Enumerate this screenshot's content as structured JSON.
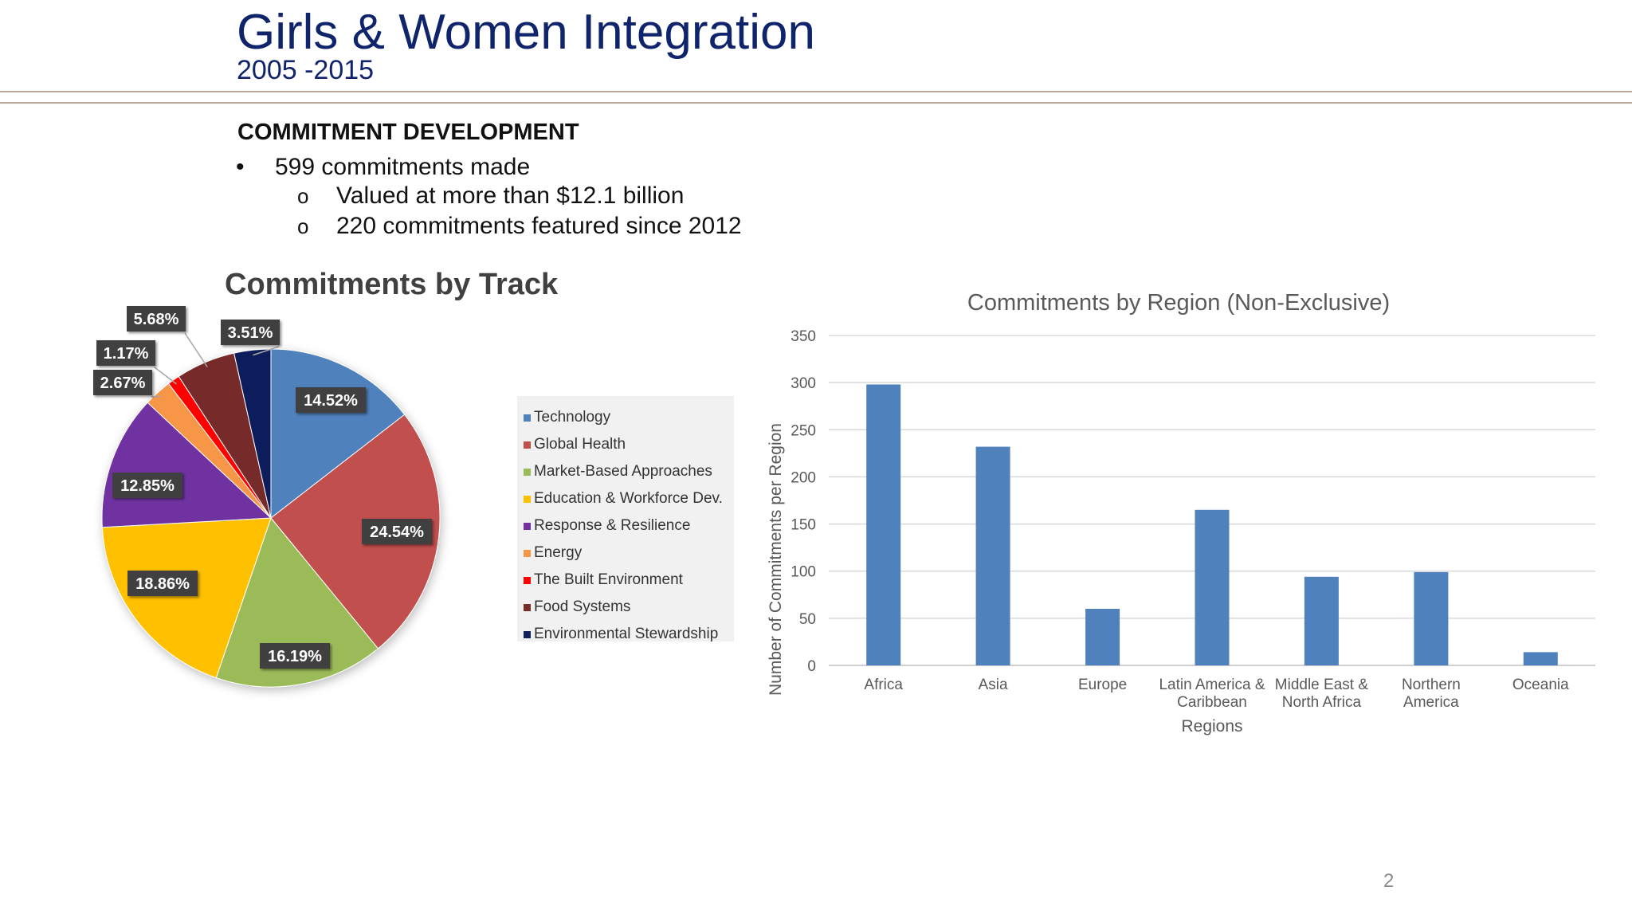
{
  "slide": {
    "title": "Girls & Women Integration",
    "subtitle": "2005 -2015",
    "section_heading": "COMMITMENT DEVELOPMENT",
    "bullets": [
      {
        "marker": "•",
        "text": "599 commitments made"
      },
      {
        "marker": "o",
        "text": "Valued at more than $12.1 billion"
      },
      {
        "marker": "o",
        "text": "220 commitments featured since 2012"
      }
    ],
    "page_number": "2"
  },
  "chart_data": [
    {
      "type": "pie",
      "title": "Commitments by Track",
      "legend_position": "right",
      "slices": [
        {
          "label": "Technology",
          "value": 14.52,
          "display": "14.52%",
          "color": "#4f81bd"
        },
        {
          "label": "Global Health",
          "value": 24.54,
          "display": "24.54%",
          "color": "#c0504d"
        },
        {
          "label": "Market-Based Approaches",
          "value": 16.19,
          "display": "16.19%",
          "color": "#9bbb59"
        },
        {
          "label": "Education & Workforce Dev.",
          "value": 18.86,
          "display": "18.86%",
          "color": "#ffc000"
        },
        {
          "label": "Response & Resilience",
          "value": 12.85,
          "display": "12.85%",
          "color": "#7030a0"
        },
        {
          "label": "Energy",
          "value": 2.67,
          "display": "2.67%",
          "color": "#f79646"
        },
        {
          "label": "The Built Environment",
          "value": 1.17,
          "display": "1.17%",
          "color": "#ff0000"
        },
        {
          "label": "Food Systems",
          "value": 5.68,
          "display": "5.68%",
          "color": "#772c2a"
        },
        {
          "label": "Environmental Stewardship",
          "value": 3.51,
          "display": "3.51%",
          "color": "#0f1f5a"
        }
      ]
    },
    {
      "type": "bar",
      "title": "Commitments by Region (Non-Exclusive)",
      "xlabel": "Regions",
      "ylabel": "Number of Commitments per Region",
      "ylim": [
        0,
        350
      ],
      "yticks": [
        0,
        50,
        100,
        150,
        200,
        250,
        300,
        350
      ],
      "grid": true,
      "bar_color": "#4f81bd",
      "categories": [
        [
          "Africa"
        ],
        [
          "Asia"
        ],
        [
          "Europe"
        ],
        [
          "Latin America &",
          "Caribbean"
        ],
        [
          "Middle East &",
          "North Africa"
        ],
        [
          "Northern",
          "America"
        ],
        [
          "Oceania"
        ]
      ],
      "values": [
        298,
        232,
        60,
        165,
        94,
        99,
        14
      ]
    }
  ]
}
